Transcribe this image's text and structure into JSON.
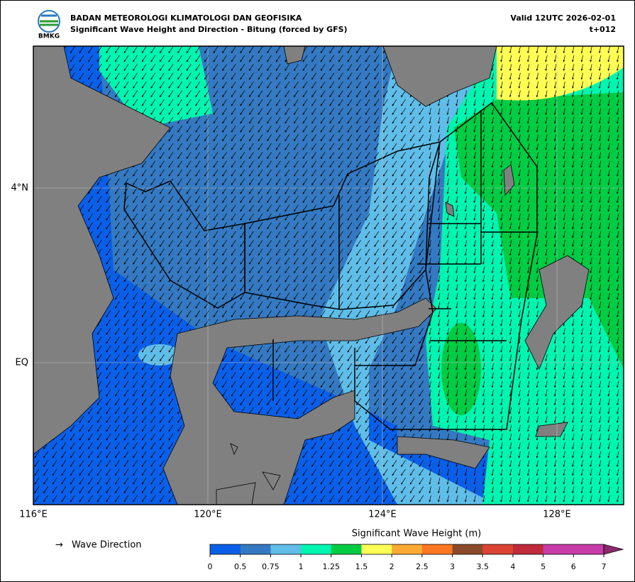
{
  "header": {
    "logo": "BMKG",
    "agency": "BADAN METEOROLOGI KLIMATOLOGI DAN GEOFISIKA",
    "subtitle": "Significant Wave Height and Direction - Bitung (forced by GFS)",
    "valid": "Valid 12UTC 2026-02-01",
    "lead": "t+012"
  },
  "map": {
    "x_labels": [
      "116°E",
      "120°E",
      "124°E",
      "128°E"
    ],
    "y_labels": [
      "4°N",
      "EQ"
    ]
  },
  "legend": {
    "arrow": "→",
    "label": "Wave Direction"
  },
  "colorbar": {
    "title": "Significant Wave Height (m)",
    "ticks": [
      "0",
      "0.5",
      "0.75",
      "1",
      "1.25",
      "1.5",
      "2",
      "2.5",
      "3",
      "3.5",
      "4",
      "5",
      "6",
      "7"
    ],
    "colors": [
      "#0a5fe8",
      "#3479c1",
      "#5fbde8",
      "#00f5b0",
      "#00cc44",
      "#ffff55",
      "#ffaa33",
      "#ff7722",
      "#8b4a2a",
      "#dd4433",
      "#c02a3a",
      "#c83caa",
      "#c83caa"
    ],
    "extend_color": "#8b2a6e"
  }
}
